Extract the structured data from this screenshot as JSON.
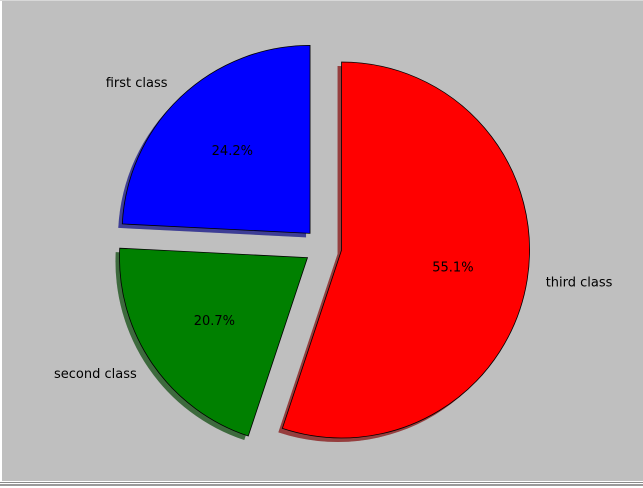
{
  "chart_data": {
    "type": "pie",
    "title": "",
    "slices": [
      {
        "label": "first class",
        "value": 24.2,
        "pct_label": "24.2%",
        "color": "#0000ff",
        "exploded": true
      },
      {
        "label": "second class",
        "value": 20.7,
        "pct_label": "20.7%",
        "color": "#008000",
        "exploded": true
      },
      {
        "label": "third class",
        "value": 55.1,
        "pct_label": "55.1%",
        "color": "#ff0000",
        "exploded": true
      }
    ],
    "start_angle_deg": 90,
    "direction": "counterclockwise",
    "shadow": true,
    "background_color": "#bfbfbf"
  }
}
